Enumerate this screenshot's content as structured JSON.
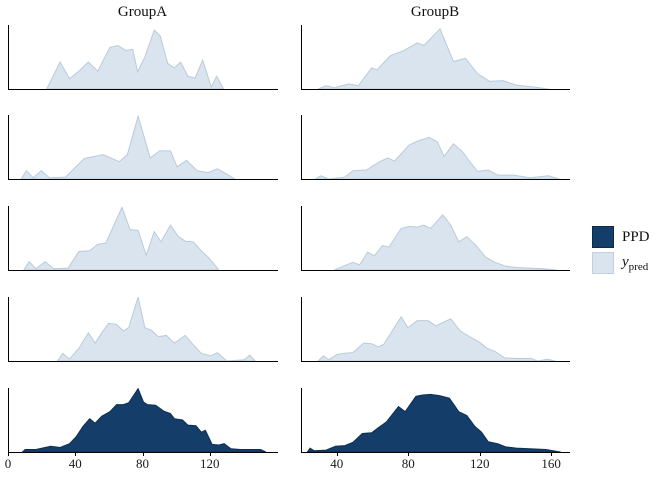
{
  "titles": {
    "left": "GroupA",
    "right": "GroupB"
  },
  "legend": {
    "position": "right",
    "items": [
      {
        "label": "PPD",
        "series": "PPD",
        "color": "#143e69"
      },
      {
        "label_main": "y",
        "label_sub": "pred",
        "series": "y_pred",
        "color": "#d9e4ee"
      }
    ]
  },
  "chart_data": {
    "type": "area",
    "description": "Faceted density comparison: 2 group columns x 5 rows; rows 1-4 are light y_pred posterior draws, row 5 is the dark PPD distribution.",
    "facets": {
      "columns": [
        "GroupA",
        "GroupB"
      ],
      "rows": 5
    },
    "grid": false,
    "colors": {
      "PPD": {
        "fill": "#143e69",
        "stroke": "#0d2f52"
      },
      "y_pred": {
        "fill": "#d9e4ee",
        "stroke": "#b9cbda"
      }
    },
    "x_axis": {
      "left": {
        "domain": [
          0,
          160
        ],
        "ticks": [
          0,
          40,
          80,
          120
        ]
      },
      "right": {
        "domain": [
          20,
          170
        ],
        "ticks": [
          40,
          80,
          120,
          160
        ]
      }
    },
    "y_axis": {
      "label": "",
      "ticks": []
    },
    "panels": [
      {
        "group": "GroupA",
        "row": 1,
        "series": "y_pred",
        "points": [
          [
            0.14,
            0
          ],
          [
            0.19,
            0.42
          ],
          [
            0.225,
            0.16
          ],
          [
            0.26,
            0.28
          ],
          [
            0.295,
            0.42
          ],
          [
            0.33,
            0.28
          ],
          [
            0.375,
            0.65
          ],
          [
            0.405,
            0.68
          ],
          [
            0.435,
            0.6
          ],
          [
            0.46,
            0.62
          ],
          [
            0.478,
            0.27
          ],
          [
            0.505,
            0.5
          ],
          [
            0.54,
            0.92
          ],
          [
            0.562,
            0.83
          ],
          [
            0.59,
            0.4
          ],
          [
            0.615,
            0.33
          ],
          [
            0.638,
            0.42
          ],
          [
            0.665,
            0.2
          ],
          [
            0.692,
            0.17
          ],
          [
            0.72,
            0.45
          ],
          [
            0.752,
            0.03
          ],
          [
            0.772,
            0.2
          ],
          [
            0.798,
            0
          ]
        ]
      },
      {
        "group": "GroupB",
        "row": 1,
        "series": "y_pred",
        "points": [
          [
            0.06,
            0
          ],
          [
            0.09,
            0.05
          ],
          [
            0.12,
            0.02
          ],
          [
            0.175,
            0.08
          ],
          [
            0.21,
            0.05
          ],
          [
            0.26,
            0.33
          ],
          [
            0.28,
            0.3
          ],
          [
            0.33,
            0.52
          ],
          [
            0.38,
            0.6
          ],
          [
            0.43,
            0.72
          ],
          [
            0.455,
            0.68
          ],
          [
            0.515,
            0.94
          ],
          [
            0.565,
            0.43
          ],
          [
            0.61,
            0.48
          ],
          [
            0.655,
            0.24
          ],
          [
            0.7,
            0.12
          ],
          [
            0.75,
            0.13
          ],
          [
            0.8,
            0.06
          ],
          [
            0.87,
            0.03
          ],
          [
            0.92,
            0
          ]
        ]
      },
      {
        "group": "GroupA",
        "row": 2,
        "series": "y_pred",
        "points": [
          [
            0.045,
            0
          ],
          [
            0.065,
            0.13
          ],
          [
            0.09,
            0.02
          ],
          [
            0.12,
            0.13
          ],
          [
            0.15,
            0.02
          ],
          [
            0.21,
            0.03
          ],
          [
            0.28,
            0.32
          ],
          [
            0.35,
            0.38
          ],
          [
            0.41,
            0.27
          ],
          [
            0.44,
            0.38
          ],
          [
            0.48,
            0.98
          ],
          [
            0.525,
            0.33
          ],
          [
            0.56,
            0.44
          ],
          [
            0.6,
            0.44
          ],
          [
            0.625,
            0.19
          ],
          [
            0.66,
            0.29
          ],
          [
            0.7,
            0.13
          ],
          [
            0.74,
            0.1
          ],
          [
            0.775,
            0.16
          ],
          [
            0.84,
            0
          ]
        ]
      },
      {
        "group": "GroupB",
        "row": 2,
        "series": "y_pred",
        "points": [
          [
            0.05,
            0
          ],
          [
            0.07,
            0.05
          ],
          [
            0.1,
            0
          ],
          [
            0.16,
            0.03
          ],
          [
            0.19,
            0.13
          ],
          [
            0.24,
            0.14
          ],
          [
            0.29,
            0.27
          ],
          [
            0.32,
            0.33
          ],
          [
            0.345,
            0.28
          ],
          [
            0.4,
            0.53
          ],
          [
            0.435,
            0.6
          ],
          [
            0.475,
            0.65
          ],
          [
            0.505,
            0.58
          ],
          [
            0.53,
            0.35
          ],
          [
            0.565,
            0.55
          ],
          [
            0.6,
            0.42
          ],
          [
            0.63,
            0.25
          ],
          [
            0.655,
            0.12
          ],
          [
            0.695,
            0.14
          ],
          [
            0.73,
            0.06
          ],
          [
            0.79,
            0.06
          ],
          [
            0.85,
            0.02
          ],
          [
            0.92,
            0.05
          ],
          [
            0.96,
            0
          ]
        ]
      },
      {
        "group": "GroupA",
        "row": 3,
        "series": "y_pred",
        "points": [
          [
            0.055,
            0
          ],
          [
            0.075,
            0.13
          ],
          [
            0.1,
            0.02
          ],
          [
            0.135,
            0.13
          ],
          [
            0.165,
            0.02
          ],
          [
            0.22,
            0.03
          ],
          [
            0.26,
            0.29
          ],
          [
            0.3,
            0.3
          ],
          [
            0.33,
            0.4
          ],
          [
            0.36,
            0.42
          ],
          [
            0.42,
            0.98
          ],
          [
            0.45,
            0.63
          ],
          [
            0.48,
            0.62
          ],
          [
            0.51,
            0.23
          ],
          [
            0.54,
            0.6
          ],
          [
            0.565,
            0.44
          ],
          [
            0.6,
            0.7
          ],
          [
            0.63,
            0.52
          ],
          [
            0.655,
            0.45
          ],
          [
            0.685,
            0.44
          ],
          [
            0.715,
            0.3
          ],
          [
            0.745,
            0.18
          ],
          [
            0.78,
            0
          ]
        ]
      },
      {
        "group": "GroupB",
        "row": 3,
        "series": "y_pred",
        "points": [
          [
            0.12,
            0
          ],
          [
            0.155,
            0.06
          ],
          [
            0.19,
            0.12
          ],
          [
            0.215,
            0.08
          ],
          [
            0.245,
            0.28
          ],
          [
            0.27,
            0.22
          ],
          [
            0.3,
            0.38
          ],
          [
            0.325,
            0.36
          ],
          [
            0.37,
            0.65
          ],
          [
            0.4,
            0.68
          ],
          [
            0.43,
            0.67
          ],
          [
            0.455,
            0.7
          ],
          [
            0.48,
            0.65
          ],
          [
            0.525,
            0.86
          ],
          [
            0.555,
            0.7
          ],
          [
            0.585,
            0.44
          ],
          [
            0.615,
            0.52
          ],
          [
            0.65,
            0.38
          ],
          [
            0.685,
            0.2
          ],
          [
            0.72,
            0.12
          ],
          [
            0.76,
            0.06
          ],
          [
            0.8,
            0.04
          ],
          [
            0.85,
            0.03
          ],
          [
            0.9,
            0.02
          ],
          [
            0.95,
            0
          ]
        ]
      },
      {
        "group": "GroupA",
        "row": 4,
        "series": "y_pred",
        "points": [
          [
            0.18,
            0
          ],
          [
            0.2,
            0.12
          ],
          [
            0.225,
            0.03
          ],
          [
            0.26,
            0.2
          ],
          [
            0.295,
            0.44
          ],
          [
            0.32,
            0.28
          ],
          [
            0.345,
            0.44
          ],
          [
            0.37,
            0.59
          ],
          [
            0.4,
            0.57
          ],
          [
            0.425,
            0.47
          ],
          [
            0.445,
            0.52
          ],
          [
            0.48,
            1.0
          ],
          [
            0.505,
            0.52
          ],
          [
            0.53,
            0.48
          ],
          [
            0.555,
            0.38
          ],
          [
            0.585,
            0.4
          ],
          [
            0.615,
            0.28
          ],
          [
            0.655,
            0.4
          ],
          [
            0.69,
            0.23
          ],
          [
            0.715,
            0.12
          ],
          [
            0.75,
            0.08
          ],
          [
            0.775,
            0.13
          ],
          [
            0.81,
            0
          ],
          [
            0.875,
            0.02
          ],
          [
            0.895,
            0.09
          ],
          [
            0.915,
            0
          ]
        ]
      },
      {
        "group": "GroupB",
        "row": 4,
        "series": "y_pred",
        "points": [
          [
            0.06,
            0
          ],
          [
            0.08,
            0.08
          ],
          [
            0.1,
            0.02
          ],
          [
            0.13,
            0.1
          ],
          [
            0.155,
            0.12
          ],
          [
            0.19,
            0.13
          ],
          [
            0.23,
            0.28
          ],
          [
            0.26,
            0.27
          ],
          [
            0.285,
            0.22
          ],
          [
            0.305,
            0.26
          ],
          [
            0.37,
            0.69
          ],
          [
            0.395,
            0.52
          ],
          [
            0.43,
            0.63
          ],
          [
            0.47,
            0.63
          ],
          [
            0.5,
            0.55
          ],
          [
            0.555,
            0.66
          ],
          [
            0.59,
            0.47
          ],
          [
            0.625,
            0.38
          ],
          [
            0.66,
            0.3
          ],
          [
            0.69,
            0.2
          ],
          [
            0.72,
            0.15
          ],
          [
            0.755,
            0.05
          ],
          [
            0.8,
            0.04
          ],
          [
            0.855,
            0.04
          ],
          [
            0.88,
            0
          ],
          [
            0.915,
            0.03
          ],
          [
            0.945,
            0
          ]
        ]
      },
      {
        "group": "GroupA",
        "row": 5,
        "series": "PPD",
        "points": [
          [
            0.05,
            0
          ],
          [
            0.06,
            0.04
          ],
          [
            0.1,
            0.04
          ],
          [
            0.155,
            0.09
          ],
          [
            0.19,
            0.07
          ],
          [
            0.225,
            0.13
          ],
          [
            0.25,
            0.24
          ],
          [
            0.275,
            0.4
          ],
          [
            0.3,
            0.52
          ],
          [
            0.32,
            0.45
          ],
          [
            0.345,
            0.56
          ],
          [
            0.375,
            0.63
          ],
          [
            0.4,
            0.74
          ],
          [
            0.425,
            0.74
          ],
          [
            0.445,
            0.77
          ],
          [
            0.48,
            0.99
          ],
          [
            0.5,
            0.78
          ],
          [
            0.515,
            0.74
          ],
          [
            0.545,
            0.73
          ],
          [
            0.575,
            0.64
          ],
          [
            0.6,
            0.6
          ],
          [
            0.615,
            0.52
          ],
          [
            0.645,
            0.5
          ],
          [
            0.665,
            0.42
          ],
          [
            0.695,
            0.41
          ],
          [
            0.715,
            0.31
          ],
          [
            0.73,
            0.34
          ],
          [
            0.755,
            0.12
          ],
          [
            0.78,
            0.11
          ],
          [
            0.8,
            0.13
          ],
          [
            0.825,
            0.05
          ],
          [
            0.86,
            0.04
          ],
          [
            0.935,
            0.04
          ],
          [
            0.955,
            0
          ]
        ]
      },
      {
        "group": "GroupB",
        "row": 5,
        "series": "PPD",
        "points": [
          [
            0.02,
            0
          ],
          [
            0.03,
            0.06
          ],
          [
            0.045,
            0.02
          ],
          [
            0.09,
            0.03
          ],
          [
            0.125,
            0.09
          ],
          [
            0.16,
            0.1
          ],
          [
            0.19,
            0.15
          ],
          [
            0.225,
            0.29
          ],
          [
            0.26,
            0.3
          ],
          [
            0.285,
            0.38
          ],
          [
            0.315,
            0.47
          ],
          [
            0.36,
            0.71
          ],
          [
            0.385,
            0.63
          ],
          [
            0.425,
            0.87
          ],
          [
            0.45,
            0.89
          ],
          [
            0.48,
            0.9
          ],
          [
            0.515,
            0.88
          ],
          [
            0.55,
            0.84
          ],
          [
            0.585,
            0.63
          ],
          [
            0.615,
            0.57
          ],
          [
            0.645,
            0.4
          ],
          [
            0.67,
            0.31
          ],
          [
            0.695,
            0.16
          ],
          [
            0.73,
            0.13
          ],
          [
            0.76,
            0.08
          ],
          [
            0.8,
            0.06
          ],
          [
            0.85,
            0.05
          ],
          [
            0.91,
            0.04
          ],
          [
            0.965,
            0
          ]
        ]
      }
    ]
  }
}
